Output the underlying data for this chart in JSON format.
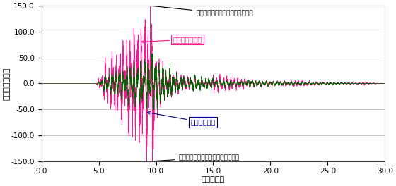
{
  "title": "",
  "xlabel": "時間（秒）",
  "ylabel": "層間変位（㎟）",
  "xlim": [
    0.0,
    30.0
  ],
  "ylim": [
    -150.0,
    150.0
  ],
  "yticks": [
    -150.0,
    -100.0,
    -50.0,
    0.0,
    50.0,
    100.0,
    150.0
  ],
  "xticks": [
    0.0,
    5.0,
    10.0,
    15.0,
    20.0,
    25.0,
    30.0
  ],
  "color_without": "#FF1493",
  "color_with": "#006400",
  "bg_color": "#ffffff",
  "annotation_max_label": "揺れの最大ポイント（プラス側）",
  "annotation_min_label": "揺れの最大ポイント（マイナス側）",
  "label_without": "制震装置未装着",
  "label_with": "制震装置装着",
  "max_point_x": 9.5,
  "max_point_y": 150.0,
  "min_point_x": 9.7,
  "min_point_y": -150.0
}
